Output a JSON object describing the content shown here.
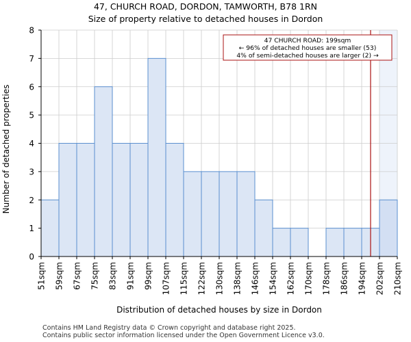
{
  "chart_data": {
    "type": "histogram",
    "title": "47, CHURCH ROAD, DORDON, TAMWORTH, B78 1RN",
    "subtitle": "Size of property relative to detached houses in Dordon",
    "xlabel": "Distribution of detached houses by size in Dordon",
    "ylabel": "Number of detached properties",
    "ylim": [
      0,
      8
    ],
    "yticks": [
      "0",
      "1",
      "2",
      "3",
      "4",
      "5",
      "6",
      "7",
      "8"
    ],
    "categories": [
      "51sqm",
      "59sqm",
      "67sqm",
      "75sqm",
      "83sqm",
      "91sqm",
      "99sqm",
      "107sqm",
      "115sqm",
      "122sqm",
      "130sqm",
      "138sqm",
      "146sqm",
      "154sqm",
      "162sqm",
      "170sqm",
      "178sqm",
      "186sqm",
      "194sqm",
      "202sqm",
      "210sqm"
    ],
    "values": [
      2,
      4,
      4,
      6,
      4,
      4,
      7,
      4,
      3,
      3,
      3,
      3,
      2,
      1,
      1,
      0,
      1,
      1,
      1,
      2
    ],
    "highlight_from_index": 19,
    "marker": {
      "value_sqm": 199,
      "label": "47 CHURCH ROAD: 199sqm"
    },
    "annotation": {
      "line1": "47 CHURCH ROAD: 199sqm",
      "line2": "← 96% of detached houses are smaller (53)",
      "line3": "4% of semi-detached houses are larger (2) →"
    },
    "colors": {
      "bar": "#dce6f5",
      "bar_edge": "#5a8fcf",
      "bar_highlight": "#dde8f8",
      "marker": "#aa1111",
      "grid": "#cccccc"
    }
  },
  "footer": {
    "line1": "Contains HM Land Registry data © Crown copyright and database right 2025.",
    "line2": "Contains public sector information licensed under the Open Government Licence v3.0."
  }
}
